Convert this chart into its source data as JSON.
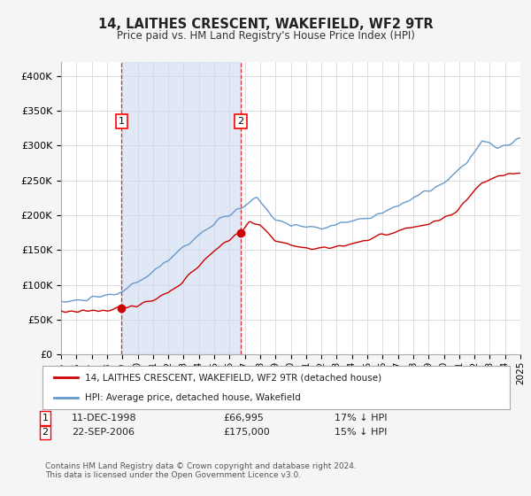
{
  "title": "14, LAITHES CRESCENT, WAKEFIELD, WF2 9TR",
  "subtitle": "Price paid vs. HM Land Registry's House Price Index (HPI)",
  "ylim": [
    0,
    420000
  ],
  "yticks": [
    0,
    50000,
    100000,
    150000,
    200000,
    250000,
    300000,
    350000,
    400000
  ],
  "ytick_labels": [
    "£0",
    "£50K",
    "£100K",
    "£150K",
    "£200K",
    "£250K",
    "£300K",
    "£350K",
    "£400K"
  ],
  "figure_bg": "#f5f5f5",
  "plot_bg": "#ffffff",
  "grid_color": "#dddddd",
  "sale1_date": 1998.95,
  "sale1_price": 66995,
  "sale2_date": 2006.73,
  "sale2_price": 175000,
  "vline_color": "#dd0000",
  "span_color": "#ccd9f0",
  "property_line_color": "#cc0000",
  "hpi_line_color": "#6699cc",
  "legend_property_label": "14, LAITHES CRESCENT, WAKEFIELD, WF2 9TR (detached house)",
  "legend_hpi_label": "HPI: Average price, detached house, Wakefield",
  "copyright_text": "Contains HM Land Registry data © Crown copyright and database right 2024.\nThis data is licensed under the Open Government Licence v3.0.",
  "xstart": 1995,
  "xend": 2025
}
